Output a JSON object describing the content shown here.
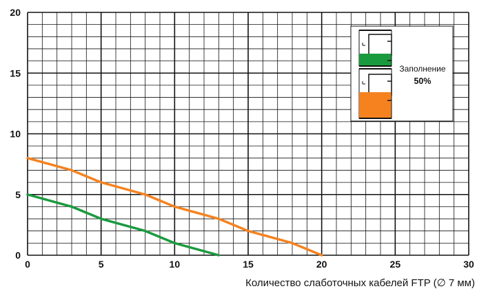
{
  "chart_data": {
    "type": "line",
    "xlabel": "Количество слаботочных кабелей FTP (∅ 7 мм)",
    "ylabel": "",
    "xlim": [
      0,
      30
    ],
    "ylim": [
      0,
      20
    ],
    "x_ticks": [
      "0",
      "5",
      "10",
      "15",
      "20",
      "25",
      "30"
    ],
    "y_ticks": [
      "0",
      "5",
      "10",
      "15",
      "20"
    ],
    "minor_grid": true,
    "grid": true,
    "series": [
      {
        "color": "#1a9a3e",
        "x": [
          0,
          3,
          5,
          8,
          10,
          13
        ],
        "y": [
          5,
          4,
          3,
          2,
          1,
          0
        ]
      },
      {
        "color": "#f5821f",
        "x": [
          0,
          3,
          5,
          8,
          10,
          13,
          15,
          18,
          20
        ],
        "y": [
          8,
          7,
          6,
          5,
          4,
          3,
          2,
          1,
          0
        ]
      }
    ],
    "inset": {
      "label": "Заполнение",
      "value": "50%",
      "colors": [
        "#1a9a3e",
        "#f5821f"
      ]
    }
  }
}
